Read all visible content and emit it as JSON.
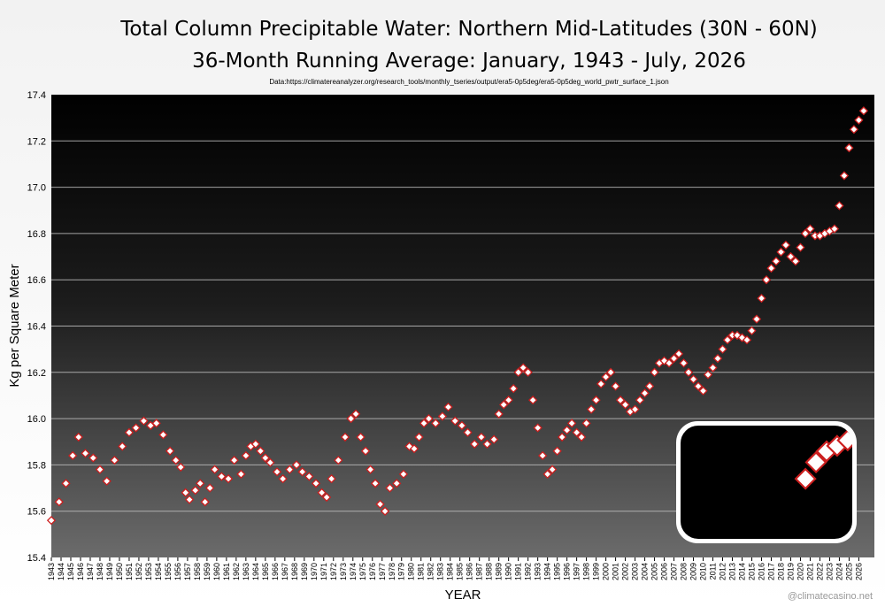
{
  "title": "Total Column Precipitable Water: Northern Mid-Latitudes (30N - 60N)",
  "subtitle": "36-Month Running Average: January, 1943 - July, 2026",
  "source": "Data:https://climatereanalyzer.org/research_tools/monthly_tseries/output/era5-0p5deg/era5-0p5deg_world_pwtr_surface_1.json",
  "watermark": "@climatecasino.net",
  "chart_data": {
    "type": "line",
    "xlabel": "YEAR",
    "ylabel": "Kg per Square Meter",
    "ylim": [
      15.4,
      17.4
    ],
    "xlim": [
      1943,
      2027.6
    ],
    "yticks": [
      15.4,
      15.6,
      15.8,
      16.0,
      16.2,
      16.4,
      16.6,
      16.8,
      17.0,
      17.2,
      17.4
    ],
    "xtick_years": [
      "1943",
      "1944",
      "1945",
      "1946",
      "1947",
      "1948",
      "1949",
      "1950",
      "1951",
      "1952",
      "1953",
      "1954",
      "1955",
      "1956",
      "1957",
      "1958",
      "1959",
      "1960",
      "1961",
      "1962",
      "1963",
      "1964",
      "1965",
      "1966",
      "1967",
      "1968",
      "1969",
      "1970",
      "1971",
      "1972",
      "1973",
      "1974",
      "1975",
      "1976",
      "1977",
      "1978",
      "1979",
      "1980",
      "1981",
      "1982",
      "1983",
      "1984",
      "1985",
      "1986",
      "1987",
      "1988",
      "1989",
      "1990",
      "1991",
      "1992",
      "1993",
      "1994",
      "1995",
      "1996",
      "1997",
      "1998",
      "1999",
      "2000",
      "2001",
      "2002",
      "2003",
      "2004",
      "2005",
      "2006",
      "2007",
      "2008",
      "2009",
      "2010",
      "2011",
      "2012",
      "2013",
      "2014",
      "2015",
      "2016",
      "2017",
      "2018",
      "2019",
      "2020",
      "2021",
      "2022",
      "2023",
      "2024",
      "2025",
      "2026"
    ],
    "grid": true,
    "marker": "diamond",
    "series": [
      {
        "color": "#cc1f1f",
        "x": [
          1943.0,
          1943.8,
          1944.5,
          1945.2,
          1945.8,
          1946.5,
          1947.3,
          1948.0,
          1948.7,
          1949.5,
          1950.3,
          1951.0,
          1951.7,
          1952.5,
          1953.2,
          1953.8,
          1954.5,
          1955.2,
          1955.8,
          1956.3,
          1956.8,
          1957.2,
          1957.8,
          1958.3,
          1958.8,
          1959.3,
          1959.8,
          1960.5,
          1961.2,
          1961.8,
          1962.5,
          1963.0,
          1963.5,
          1964.0,
          1964.5,
          1965.0,
          1965.5,
          1966.2,
          1966.8,
          1967.5,
          1968.2,
          1968.8,
          1969.5,
          1970.2,
          1970.8,
          1971.3,
          1971.8,
          1972.5,
          1973.2,
          1973.8,
          1974.3,
          1974.8,
          1975.3,
          1975.8,
          1976.3,
          1976.8,
          1977.3,
          1977.8,
          1978.5,
          1979.2,
          1979.8,
          1980.3,
          1980.8,
          1981.3,
          1981.8,
          1982.5,
          1983.2,
          1983.8,
          1984.5,
          1985.2,
          1985.8,
          1986.5,
          1987.2,
          1987.8,
          1988.5,
          1989.0,
          1989.5,
          1990.0,
          1990.5,
          1991.0,
          1991.5,
          1992.0,
          1992.5,
          1993.0,
          1993.5,
          1994.0,
          1994.5,
          1995.0,
          1995.5,
          1996.0,
          1996.5,
          1997.0,
          1997.5,
          1998.0,
          1998.5,
          1999.0,
          1999.5,
          2000.0,
          2000.5,
          2001.0,
          2001.5,
          2002.0,
          2002.5,
          2003.0,
          2003.5,
          2004.0,
          2004.5,
          2005.0,
          2005.5,
          2006.0,
          2006.5,
          2007.0,
          2007.5,
          2008.0,
          2008.5,
          2009.0,
          2009.5,
          2010.0,
          2010.5,
          2011.0,
          2011.5,
          2012.0,
          2012.5,
          2013.0,
          2013.5,
          2014.0,
          2014.5,
          2015.0,
          2015.5,
          2016.0,
          2016.5,
          2017.0,
          2017.5,
          2018.0,
          2018.5,
          2019.0,
          2019.5,
          2020.0,
          2020.5,
          2021.0,
          2021.5,
          2022.0,
          2022.5,
          2023.0,
          2023.5,
          2024.0,
          2024.5,
          2025.0,
          2025.5,
          2026.0,
          2026.5
        ],
        "y": [
          15.56,
          15.64,
          15.72,
          15.84,
          15.92,
          15.85,
          15.83,
          15.78,
          15.73,
          15.82,
          15.88,
          15.94,
          15.96,
          15.99,
          15.97,
          15.98,
          15.93,
          15.86,
          15.82,
          15.79,
          15.68,
          15.65,
          15.69,
          15.72,
          15.64,
          15.7,
          15.78,
          15.75,
          15.74,
          15.82,
          15.76,
          15.84,
          15.88,
          15.89,
          15.86,
          15.83,
          15.81,
          15.77,
          15.74,
          15.78,
          15.8,
          15.77,
          15.75,
          15.72,
          15.68,
          15.66,
          15.74,
          15.82,
          15.92,
          16.0,
          16.02,
          15.92,
          15.86,
          15.78,
          15.72,
          15.63,
          15.6,
          15.7,
          15.72,
          15.76,
          15.88,
          15.87,
          15.92,
          15.98,
          16.0,
          15.98,
          16.01,
          16.05,
          15.99,
          15.97,
          15.94,
          15.89,
          15.92,
          15.89,
          15.91,
          16.02,
          16.06,
          16.08,
          16.13,
          16.2,
          16.22,
          16.2,
          16.08,
          15.96,
          15.84,
          15.76,
          15.78,
          15.86,
          15.92,
          15.95,
          15.98,
          15.94,
          15.92,
          15.98,
          16.04,
          16.08,
          16.15,
          16.18,
          16.2,
          16.14,
          16.08,
          16.06,
          16.03,
          16.04,
          16.08,
          16.11,
          16.14,
          16.2,
          16.24,
          16.25,
          16.24,
          16.26,
          16.28,
          16.24,
          16.2,
          16.17,
          16.14,
          16.12,
          16.19,
          16.22,
          16.26,
          16.3,
          16.34,
          16.36,
          16.36,
          16.35,
          16.34,
          16.38,
          16.43,
          16.52,
          16.6,
          16.65,
          16.68,
          16.72,
          16.75,
          16.7,
          16.68,
          16.74,
          16.8,
          16.82,
          16.79,
          16.79,
          16.8,
          16.81,
          16.82,
          16.92,
          17.05,
          17.17,
          17.25,
          17.29,
          17.33
        ]
      }
    ]
  }
}
